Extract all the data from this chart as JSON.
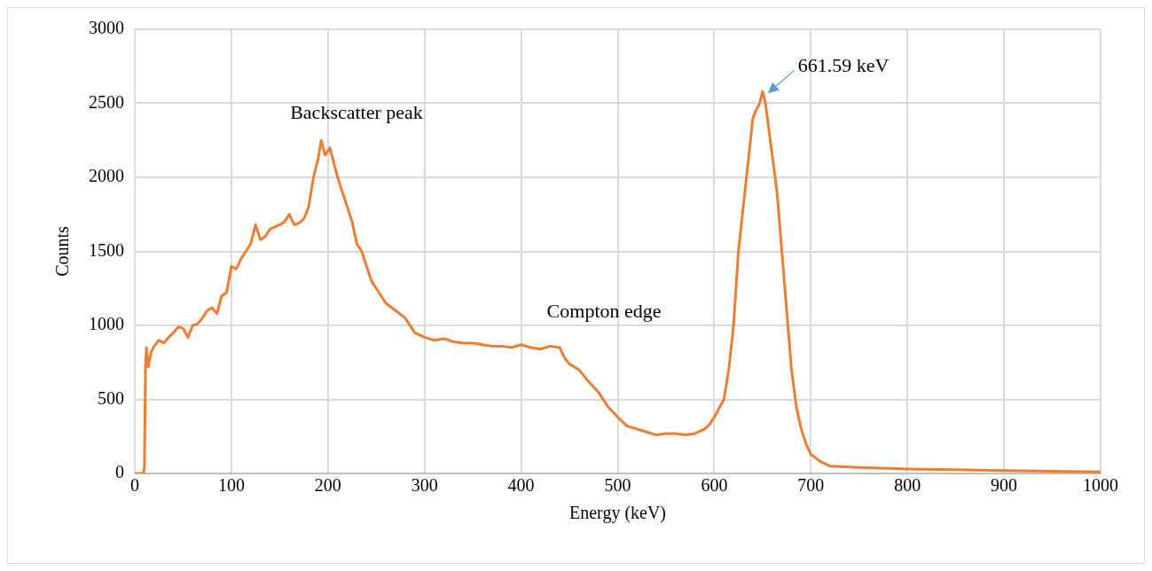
{
  "chart_data": {
    "type": "line",
    "xlabel": "Energy (keV)",
    "ylabel": "Counts",
    "x": [
      0,
      5,
      9,
      10,
      11,
      12,
      14,
      17,
      20,
      25,
      30,
      35,
      40,
      45,
      50,
      55,
      60,
      65,
      70,
      75,
      80,
      85,
      90,
      95,
      100,
      105,
      110,
      115,
      120,
      125,
      130,
      135,
      140,
      150,
      155,
      160,
      165,
      170,
      175,
      180,
      185,
      190,
      193,
      197,
      202,
      206,
      210,
      215,
      220,
      225,
      230,
      235,
      240,
      245,
      250,
      260,
      270,
      280,
      290,
      300,
      310,
      320,
      330,
      340,
      350,
      360,
      370,
      380,
      390,
      400,
      410,
      420,
      430,
      440,
      445,
      450,
      460,
      470,
      480,
      490,
      500,
      510,
      520,
      530,
      540,
      550,
      560,
      570,
      580,
      590,
      595,
      600,
      605,
      610,
      615,
      620,
      625,
      630,
      635,
      640,
      643,
      647,
      650,
      653,
      657,
      660,
      665,
      670,
      675,
      680,
      685,
      690,
      695,
      700,
      710,
      720,
      750,
      800,
      850,
      900,
      950,
      1000
    ],
    "series": [
      {
        "color": "#ed7d31",
        "values": [
          0,
          0,
          0,
          50,
          700,
          850,
          720,
          820,
          860,
          900,
          880,
          920,
          950,
          990,
          980,
          920,
          1000,
          1010,
          1050,
          1100,
          1120,
          1080,
          1200,
          1220,
          1400,
          1380,
          1450,
          1500,
          1550,
          1680,
          1580,
          1600,
          1650,
          1680,
          1700,
          1750,
          1680,
          1690,
          1720,
          1800,
          2000,
          2130,
          2250,
          2150,
          2200,
          2100,
          2000,
          1900,
          1800,
          1700,
          1550,
          1500,
          1400,
          1300,
          1250,
          1150,
          1100,
          1050,
          950,
          920,
          900,
          910,
          890,
          880,
          880,
          870,
          860,
          860,
          850,
          870,
          850,
          840,
          860,
          850,
          780,
          740,
          700,
          620,
          550,
          450,
          380,
          320,
          300,
          280,
          260,
          270,
          270,
          260,
          270,
          300,
          330,
          380,
          440,
          500,
          700,
          1000,
          1500,
          1800,
          2100,
          2400,
          2450,
          2500,
          2580,
          2500,
          2300,
          2150,
          1900,
          1500,
          1100,
          700,
          450,
          300,
          200,
          130,
          80,
          50,
          40,
          30,
          25,
          20,
          15,
          10
        ]
      }
    ],
    "xlim": [
      0,
      1000
    ],
    "xticks": [
      0,
      100,
      200,
      300,
      400,
      500,
      600,
      700,
      800,
      900,
      1000
    ],
    "ylim": [
      0,
      3000
    ],
    "yticks": [
      0,
      500,
      1000,
      1500,
      2000,
      2500,
      3000
    ],
    "grid": true,
    "legend": false,
    "marker": "none",
    "line_style": "solid",
    "annotations": [
      {
        "text": "Backscatter peak",
        "x": 193,
        "y": 2250
      },
      {
        "text": "Compton edge",
        "x": 445,
        "y": 850
      },
      {
        "text": "661.59 keV",
        "x": 650,
        "y": 2580
      }
    ]
  }
}
